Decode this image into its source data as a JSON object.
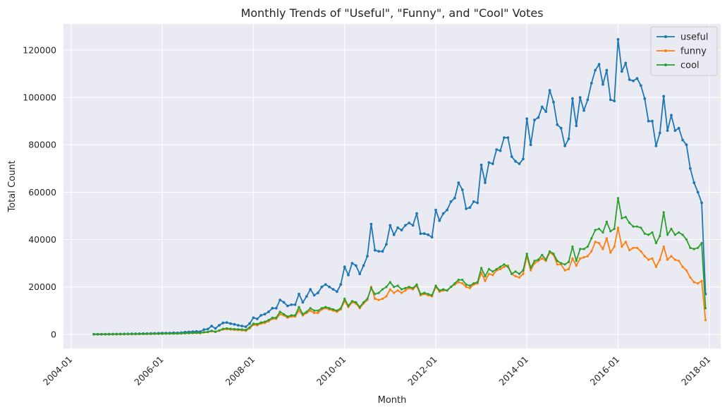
{
  "chart_data": {
    "type": "line",
    "title": "Monthly Trends of \"Useful\", \"Funny\", and \"Cool\" Votes",
    "xlabel": "Month",
    "ylabel": "Total Count",
    "x_tick_labels": [
      "2004-01",
      "2006-01",
      "2008-01",
      "2010-01",
      "2012-01",
      "2014-01",
      "2016-01",
      "2018-01"
    ],
    "y_tick_labels": [
      "0",
      "20000",
      "40000",
      "60000",
      "80000",
      "100000",
      "120000"
    ],
    "y_ticks": [
      0,
      20000,
      40000,
      60000,
      80000,
      100000,
      120000
    ],
    "xlim": [
      "2003-11",
      "2018-04"
    ],
    "ylim": [
      -6000,
      131000
    ],
    "grid": true,
    "legend_position": "top-right",
    "x_start": "2004-07",
    "series": [
      {
        "name": "useful",
        "color": "#1f77b4",
        "marker": "star",
        "values": [
          20,
          12,
          30,
          50,
          60,
          80,
          100,
          110,
          150,
          160,
          200,
          230,
          260,
          280,
          300,
          350,
          400,
          420,
          480,
          500,
          520,
          600,
          580,
          700,
          900,
          1000,
          1100,
          1200,
          1100,
          2000,
          2200,
          3500,
          2500,
          3800,
          4800,
          5000,
          4500,
          4200,
          3800,
          3500,
          3200,
          4500,
          7000,
          6500,
          8000,
          8500,
          9500,
          11000,
          11000,
          14500,
          13500,
          12000,
          12500,
          12500,
          17000,
          13500,
          16000,
          19000,
          16500,
          17500,
          20000,
          21000,
          20000,
          19000,
          18000,
          21000,
          28500,
          25000,
          30000,
          29000,
          25500,
          29000,
          33000,
          46500,
          35500,
          35000,
          35000,
          38000,
          46000,
          42000,
          45000,
          44000,
          46000,
          47000,
          46000,
          51000,
          42500,
          42500,
          42000,
          41000,
          52500,
          48000,
          51000,
          52500,
          56000,
          57500,
          64000,
          61000,
          53000,
          53500,
          56000,
          55500,
          71500,
          64000,
          72500,
          72000,
          78000,
          77500,
          83000,
          83000,
          75000,
          73000,
          72000,
          74000,
          91000,
          80000,
          90500,
          91500,
          96000,
          94000,
          103000,
          98000,
          88500,
          87000,
          79500,
          82500,
          99500,
          88000,
          100000,
          94500,
          99000,
          106000,
          111500,
          114000,
          105500,
          111500,
          99000,
          98500,
          124500,
          111000,
          114500,
          107500,
          107000,
          108000,
          105000,
          99500,
          90000,
          90000,
          79500,
          85000,
          100500,
          86000,
          92500,
          86000,
          87000,
          82000,
          80000,
          70000,
          64000,
          60000,
          55500,
          17000
        ]
      },
      {
        "name": "funny",
        "color": "#ff7f0e",
        "marker": "dot",
        "values": [
          10,
          10,
          15,
          20,
          30,
          40,
          50,
          60,
          70,
          80,
          90,
          100,
          120,
          140,
          160,
          180,
          200,
          210,
          230,
          250,
          270,
          300,
          300,
          350,
          400,
          450,
          500,
          550,
          500,
          800,
          900,
          1300,
          1000,
          1500,
          2000,
          2200,
          2000,
          1900,
          1800,
          1700,
          1500,
          2500,
          4000,
          3800,
          4500,
          4800,
          5500,
          6500,
          6500,
          8500,
          8000,
          7000,
          7500,
          7500,
          10000,
          8000,
          9000,
          10000,
          9000,
          9000,
          10500,
          11000,
          10500,
          10000,
          9500,
          10500,
          14000,
          11500,
          13500,
          13000,
          11000,
          13000,
          14500,
          20000,
          15000,
          14500,
          15000,
          16000,
          19000,
          17500,
          18500,
          17500,
          18500,
          19500,
          19000,
          20500,
          16500,
          17000,
          16500,
          16000,
          20000,
          18000,
          18500,
          18500,
          20000,
          21000,
          22000,
          21500,
          20000,
          19500,
          21000,
          21500,
          26000,
          22500,
          25500,
          25000,
          27000,
          27500,
          28500,
          29000,
          25500,
          24500,
          24000,
          25500,
          33000,
          27000,
          30000,
          31000,
          32000,
          31000,
          34500,
          33500,
          29500,
          29500,
          27000,
          27500,
          32000,
          29000,
          32000,
          32500,
          33000,
          35000,
          39000,
          38500,
          36000,
          40500,
          34500,
          37000,
          45000,
          37000,
          39000,
          35500,
          36500,
          36500,
          35000,
          33000,
          31500,
          32000,
          28500,
          31500,
          37000,
          31500,
          33000,
          31500,
          31000,
          28500,
          27000,
          24000,
          22000,
          21500,
          22500,
          6000
        ]
      },
      {
        "name": "cool",
        "color": "#2ca02c",
        "marker": "dot",
        "values": [
          10,
          10,
          15,
          25,
          30,
          45,
          55,
          65,
          75,
          85,
          95,
          110,
          130,
          150,
          170,
          190,
          210,
          230,
          250,
          270,
          290,
          320,
          320,
          380,
          450,
          500,
          550,
          600,
          550,
          900,
          1000,
          1500,
          1100,
          1600,
          2300,
          2500,
          2300,
          2200,
          2100,
          2000,
          1800,
          2900,
          4500,
          4300,
          5000,
          5300,
          6000,
          7000,
          7000,
          9500,
          8500,
          7500,
          8000,
          8000,
          11500,
          8500,
          9500,
          11000,
          10000,
          10000,
          11000,
          11500,
          11000,
          10500,
          10000,
          11000,
          15000,
          12000,
          14000,
          13500,
          11500,
          13500,
          15000,
          19500,
          17000,
          17500,
          19000,
          20000,
          22000,
          20000,
          20500,
          19000,
          19500,
          20000,
          19500,
          21000,
          17000,
          17500,
          17000,
          16500,
          20500,
          18500,
          19000,
          18500,
          20000,
          21500,
          23000,
          23000,
          21000,
          20500,
          21500,
          22000,
          28000,
          24500,
          27500,
          26500,
          27500,
          28500,
          29500,
          28500,
          25500,
          26500,
          25500,
          27000,
          34000,
          28000,
          31000,
          31500,
          33500,
          31500,
          35000,
          34000,
          31000,
          30000,
          29500,
          30500,
          37000,
          31000,
          36000,
          36000,
          37000,
          40500,
          44000,
          44500,
          43000,
          47500,
          43500,
          44500,
          57500,
          49000,
          49500,
          47000,
          45500,
          45500,
          45000,
          42500,
          42000,
          43000,
          38500,
          41500,
          51500,
          42000,
          44500,
          42000,
          43000,
          42000,
          40000,
          36500,
          36000,
          36500,
          38500,
          11000
        ]
      }
    ]
  }
}
